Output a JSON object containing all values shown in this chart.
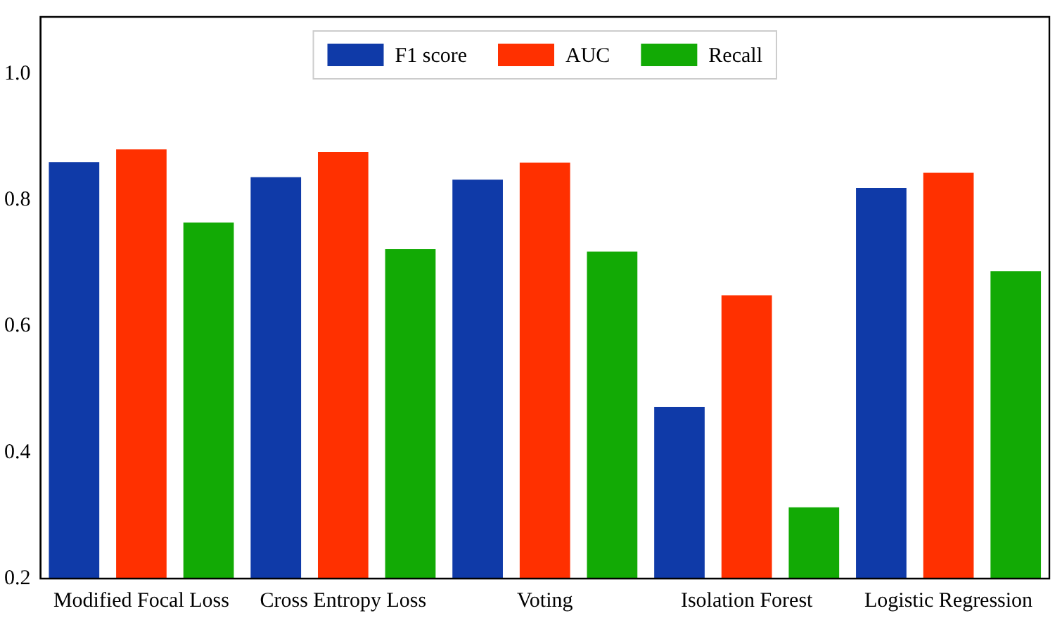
{
  "chart_data": {
    "type": "bar",
    "categories": [
      "Modified Focal Loss",
      "Cross Entropy Loss",
      "Voting",
      "Isolation Forest",
      "Logistic Regression"
    ],
    "series": [
      {
        "name": "F1 score",
        "color": "#0f3aa8",
        "values": [
          0.86,
          0.836,
          0.832,
          0.472,
          0.819
        ]
      },
      {
        "name": "AUC",
        "color": "#ff3000",
        "values": [
          0.88,
          0.876,
          0.859,
          0.649,
          0.843
        ]
      },
      {
        "name": "Recall",
        "color": "#12aa05",
        "values": [
          0.764,
          0.722,
          0.718,
          0.313,
          0.687
        ]
      }
    ],
    "ylim": [
      0.2,
      1.09
    ],
    "yticks": [
      0.2,
      0.4,
      0.6,
      0.8,
      {
        "value": 1,
        "label": "1.0"
      }
    ],
    "grid": false,
    "legend": "top"
  }
}
